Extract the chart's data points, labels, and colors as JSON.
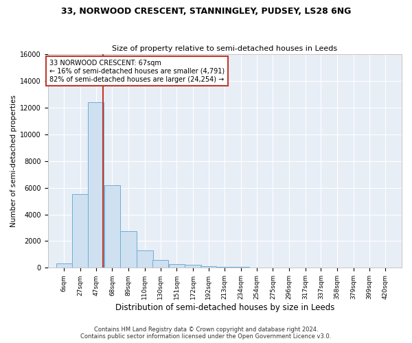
{
  "title": "33, NORWOOD CRESCENT, STANNINGLEY, PUDSEY, LS28 6NG",
  "subtitle": "Size of property relative to semi-detached houses in Leeds",
  "xlabel": "Distribution of semi-detached houses by size in Leeds",
  "ylabel": "Number of semi-detached properties",
  "bar_color": "#cfe0f0",
  "bar_edge_color": "#6baed6",
  "bg_color": "#e8eef6",
  "grid_color": "#ffffff",
  "property_size": 67,
  "property_line_color": "#c0392b",
  "annotation_text": "33 NORWOOD CRESCENT: 67sqm\n← 16% of semi-detached houses are smaller (4,791)\n82% of semi-detached houses are larger (24,254) →",
  "annotation_box_color": "#c0392b",
  "categories": [
    "6sqm",
    "27sqm",
    "47sqm",
    "68sqm",
    "89sqm",
    "110sqm",
    "130sqm",
    "151sqm",
    "172sqm",
    "192sqm",
    "213sqm",
    "234sqm",
    "254sqm",
    "275sqm",
    "296sqm",
    "317sqm",
    "337sqm",
    "358sqm",
    "379sqm",
    "399sqm",
    "420sqm"
  ],
  "bin_edges": [
    6,
    27,
    47,
    68,
    89,
    110,
    130,
    151,
    172,
    192,
    213,
    234,
    254,
    275,
    296,
    317,
    337,
    358,
    379,
    399,
    420
  ],
  "values": [
    320,
    5500,
    12400,
    6200,
    2750,
    1300,
    560,
    280,
    200,
    130,
    80,
    60,
    40,
    30,
    20,
    15,
    10,
    8,
    5,
    4
  ],
  "ylim": [
    0,
    16000
  ],
  "yticks": [
    0,
    2000,
    4000,
    6000,
    8000,
    10000,
    12000,
    14000,
    16000
  ],
  "footer_line1": "Contains HM Land Registry data © Crown copyright and database right 2024.",
  "footer_line2": "Contains public sector information licensed under the Open Government Licence v3.0."
}
